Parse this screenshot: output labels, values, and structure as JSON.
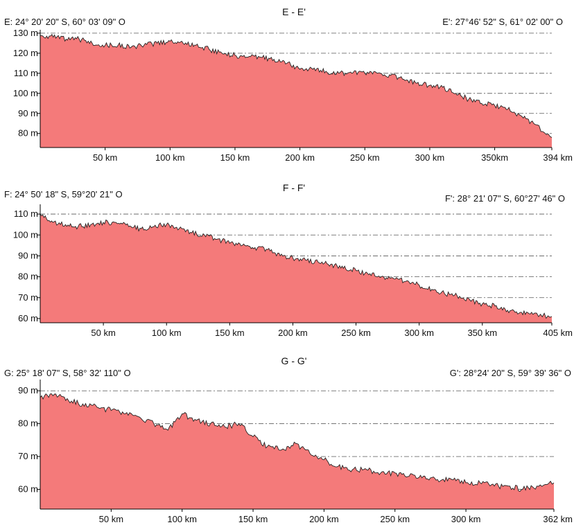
{
  "colors": {
    "fill": "#f47a7a",
    "outline": "#222222",
    "grid": "#555555",
    "axis": "#000000"
  },
  "chart_data": [
    {
      "type": "area",
      "title": "E - E'",
      "start_label": "E: 24° 20' 20\" S, 60° 03' 09\" O",
      "end_label": "E': 27°46' 52\" S, 61° 02' 00\" O",
      "xlim": [
        0,
        394
      ],
      "x_ticks": [
        50,
        100,
        150,
        200,
        250,
        300,
        350,
        394
      ],
      "x_tick_labels": [
        "50 km",
        "100 km",
        "150 km",
        "200 km",
        "250 km",
        "300 km",
        "350km",
        "394 km"
      ],
      "ylim": [
        73,
        131
      ],
      "y_ticks": [
        80,
        90,
        100,
        110,
        120,
        130
      ],
      "y_tick_labels": [
        "80 m",
        "90 m",
        "100 m",
        "110 m",
        "120 m",
        "130 m"
      ],
      "grid": "horizontal dash-dot",
      "series": [
        {
          "x": [
            0,
            10,
            20,
            30,
            40,
            50,
            60,
            70,
            80,
            90,
            100,
            110,
            120,
            130,
            140,
            150,
            160,
            170,
            180,
            190,
            200,
            210,
            220,
            230,
            240,
            250,
            260,
            270,
            280,
            290,
            300,
            310,
            320,
            330,
            340,
            350,
            360,
            370,
            380,
            394
          ],
          "y": [
            129,
            128,
            127,
            127,
            125,
            124,
            124,
            123,
            124,
            125,
            126,
            125,
            124,
            122,
            120,
            119,
            118,
            118,
            117,
            115,
            112,
            112,
            111,
            110,
            110,
            110,
            110,
            109,
            107,
            105,
            104,
            103,
            100,
            97,
            95,
            94,
            92,
            89,
            85,
            78
          ]
        }
      ]
    },
    {
      "type": "area",
      "title": "F - F'",
      "start_label": "F: 24° 50' 18\" S, 59°20' 21\" O",
      "end_label": "F': 28° 21' 07\" S, 60°27' 46\" O",
      "xlim": [
        0,
        405
      ],
      "x_ticks": [
        50,
        100,
        150,
        200,
        250,
        300,
        350,
        405
      ],
      "x_tick_labels": [
        "50 km",
        "100 km",
        "150 km",
        "200 km",
        "250 km",
        "300 km",
        "350 km",
        "405 km"
      ],
      "ylim": [
        58,
        114
      ],
      "y_ticks": [
        60,
        70,
        80,
        90,
        100,
        110
      ],
      "y_tick_labels": [
        "60 m",
        "70 m",
        "80 m",
        "90 m",
        "100 m",
        "110 m"
      ],
      "grid": "horizontal dash-dot",
      "series": [
        {
          "x": [
            0,
            10,
            20,
            30,
            40,
            50,
            60,
            70,
            80,
            90,
            100,
            110,
            120,
            130,
            140,
            150,
            160,
            170,
            180,
            190,
            200,
            210,
            220,
            230,
            240,
            250,
            260,
            270,
            280,
            290,
            300,
            310,
            320,
            330,
            340,
            350,
            360,
            370,
            380,
            390,
            405
          ],
          "y": [
            110,
            106,
            105,
            104,
            105,
            106,
            106,
            104,
            103,
            104,
            105,
            103,
            101,
            100,
            98,
            96,
            95,
            94,
            93,
            90,
            89,
            88,
            87,
            86,
            84,
            83,
            81,
            80,
            79,
            78,
            76,
            74,
            72,
            71,
            69,
            67,
            66,
            64,
            63,
            62,
            61
          ]
        }
      ]
    },
    {
      "type": "area",
      "title": "G - G'",
      "start_label": "G: 25° 18' 07\" S, 58° 32' 110\" O",
      "end_label": "G': 28°24' 20\" S, 59° 39' 36\" O",
      "xlim": [
        0,
        362
      ],
      "x_ticks": [
        50,
        100,
        150,
        200,
        250,
        300,
        362
      ],
      "x_tick_labels": [
        "50 km",
        "100 km",
        "150 km",
        "200 km",
        "250 km",
        "300 km",
        "362 km"
      ],
      "ylim": [
        54,
        93
      ],
      "y_ticks": [
        60,
        70,
        80,
        90
      ],
      "y_tick_labels": [
        "60 m",
        "70 m",
        "80 m",
        "90 m"
      ],
      "grid": "horizontal dash-dot",
      "series": [
        {
          "x": [
            0,
            10,
            20,
            30,
            40,
            50,
            60,
            70,
            80,
            90,
            100,
            110,
            120,
            130,
            140,
            150,
            160,
            170,
            180,
            190,
            200,
            210,
            220,
            230,
            240,
            250,
            260,
            270,
            280,
            290,
            300,
            310,
            320,
            330,
            340,
            350,
            362
          ],
          "y": [
            88,
            89,
            87,
            86,
            85,
            84,
            83,
            82,
            80,
            78,
            83,
            81,
            80,
            79,
            80,
            76,
            73,
            72,
            74,
            71,
            69,
            67,
            66,
            66,
            65,
            65,
            64,
            64,
            63,
            63,
            62,
            62,
            61,
            61,
            60,
            61,
            62
          ]
        }
      ]
    }
  ]
}
